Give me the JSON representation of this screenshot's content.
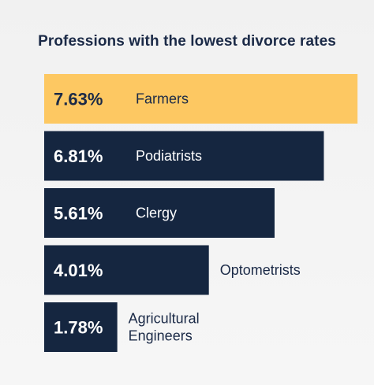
{
  "chart_data": {
    "type": "bar",
    "orientation": "horizontal",
    "title": "Professions with the lowest divorce rates",
    "categories": [
      "Farmers",
      "Podiatrists",
      "Clergy",
      "Optometrists",
      "Agricultural Engineers"
    ],
    "values": [
      7.63,
      6.81,
      5.61,
      4.01,
      1.78
    ],
    "value_labels": [
      "7.63%",
      "6.81%",
      "5.61%",
      "4.01%",
      "1.78%"
    ],
    "label_lines": [
      [
        "Farmers"
      ],
      [
        "Podiatrists"
      ],
      [
        "Clergy"
      ],
      [
        "Optometrists"
      ],
      [
        "Agricultural",
        "Engineers"
      ]
    ],
    "xlim": [
      0,
      8.3
    ],
    "grid": false,
    "highlight_index": 0
  },
  "colors": {
    "bar": "#152640",
    "highlight": "#fdc862",
    "text_on_dark": "#ffffff",
    "text_on_light": "#1b2a47",
    "background": "#f3f3f3"
  }
}
